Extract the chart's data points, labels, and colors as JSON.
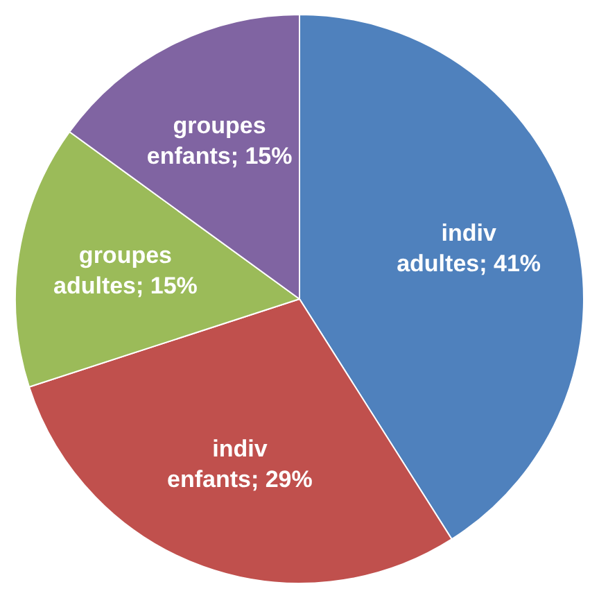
{
  "chart_data": {
    "type": "pie",
    "categories": [
      "indiv adultes",
      "indiv enfants",
      "groupes adultes",
      "groupes enfants"
    ],
    "values": [
      41,
      29,
      15,
      15
    ],
    "value_labels": [
      "41%",
      "29%",
      "15%",
      "15%"
    ],
    "colors": [
      "#4f81bd",
      "#c0504d",
      "#9bbb59",
      "#8064a2"
    ],
    "legend": false
  }
}
